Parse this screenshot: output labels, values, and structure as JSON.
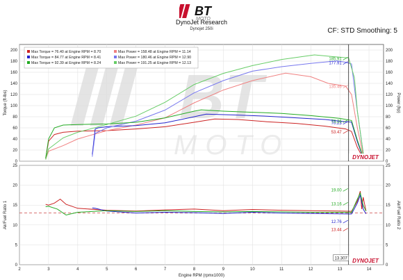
{
  "header": {
    "brand": "BT MOTO",
    "title": "DynoJet Research",
    "subtitle": "Dynojet 250i",
    "correction": "CF: STD Smoothing: 5"
  },
  "watermark": {
    "brand": "BT MOTO",
    "badge": "DYNOJET"
  },
  "colors": {
    "red": "#cc2222",
    "blue": "#2222cc",
    "green": "#22aa22",
    "salmon": "#f08080",
    "lightblue": "#7777ee",
    "lightgreen": "#66cc66",
    "target": "#cc4444"
  },
  "chart_data": [
    {
      "type": "line",
      "xlabel": "",
      "ylabel": "Torque (ft-lbs)",
      "ylabel2": "Power (hp)",
      "xlim": [
        2,
        14.5
      ],
      "ylim": [
        0,
        210
      ],
      "xticks": [
        2,
        3,
        4,
        5,
        6,
        7,
        8,
        9,
        10,
        11,
        12,
        13,
        14
      ],
      "yticks": [
        0,
        20,
        40,
        60,
        80,
        100,
        120,
        140,
        160,
        180,
        200
      ],
      "grid": true,
      "legend_position": "top-left",
      "legend": [
        "Max Torque = 76.40 at Engine RPM = 8.70",
        "Max Power = 158.48 at Engine RPM = 11.14",
        "Max Torque = 84.77 at Engine RPM = 8.41",
        "Max Power = 180.46 at Engine RPM = 12.90",
        "Max Torque = 92.39 at Engine RPM = 8.24",
        "Max Power = 191.25 at Engine RPM = 12.13"
      ],
      "series": [
        {
          "color": "#cc2222",
          "kind": "torque",
          "x": [
            2.9,
            3.0,
            3.2,
            3.5,
            4.0,
            5.0,
            6.0,
            7.0,
            8.0,
            8.7,
            9.5,
            10.5,
            11.5,
            12.5,
            13.2,
            13.4,
            13.6,
            13.8,
            13.9
          ],
          "y": [
            5,
            36,
            48,
            52,
            54,
            55,
            58,
            62,
            70,
            76,
            75,
            71,
            68,
            63,
            58,
            53.5,
            25,
            5,
            2
          ]
        },
        {
          "color": "#f08080",
          "kind": "power",
          "x": [
            2.9,
            3.0,
            3.5,
            4.0,
            5.0,
            6.0,
            7.0,
            8.0,
            9.0,
            10.0,
            11.14,
            12.0,
            12.6,
            13.2,
            13.4,
            13.6,
            13.8,
            13.9
          ],
          "y": [
            3,
            18,
            28,
            40,
            55,
            65,
            78,
            105,
            128,
            145,
            158.5,
            152,
            140,
            135,
            120,
            60,
            10,
            2
          ]
        },
        {
          "color": "#2222cc",
          "kind": "torque",
          "x": [
            4.5,
            4.6,
            4.7,
            5.0,
            6.0,
            7.0,
            8.0,
            8.41,
            9.5,
            10.5,
            11.5,
            12.5,
            13.0,
            13.4,
            13.6,
            13.8,
            13.9
          ],
          "y": [
            12,
            58,
            60,
            62,
            64,
            69,
            80,
            84.8,
            83,
            81,
            78,
            75,
            72,
            70.2,
            35,
            6,
            2
          ]
        },
        {
          "color": "#7777ee",
          "kind": "power",
          "x": [
            4.5,
            4.6,
            5.0,
            6.0,
            7.0,
            8.0,
            9.0,
            10.0,
            11.0,
            12.0,
            12.9,
            13.2,
            13.4,
            13.6,
            13.8,
            13.9
          ],
          "y": [
            8,
            50,
            60,
            72,
            92,
            123,
            145,
            162,
            170,
            176,
            180.5,
            178,
            175,
            90,
            15,
            3
          ]
        },
        {
          "color": "#22aa22",
          "kind": "torque",
          "x": [
            2.9,
            3.0,
            3.2,
            3.5,
            4.0,
            5.0,
            6.0,
            7.0,
            8.0,
            8.24,
            9.0,
            10.0,
            11.0,
            12.0,
            13.0,
            13.4,
            13.6,
            13.8,
            13.9
          ],
          "y": [
            5,
            40,
            60,
            65,
            66,
            67,
            70,
            78,
            90,
            92.4,
            90,
            88,
            86,
            82,
            77,
            73.3,
            38,
            7,
            2
          ]
        },
        {
          "color": "#66cc66",
          "kind": "power",
          "x": [
            2.9,
            3.0,
            3.5,
            4.0,
            5.0,
            6.0,
            7.0,
            8.0,
            9.0,
            10.0,
            11.0,
            12.13,
            12.8,
            13.3,
            13.5,
            13.6,
            13.8,
            13.9
          ],
          "y": [
            3,
            22,
            42,
            52,
            66,
            81,
            106,
            138,
            158,
            172,
            183,
            191.3,
            188,
            185.9,
            150,
            90,
            15,
            3
          ]
        }
      ],
      "annotations": [
        {
          "x": 13.3,
          "y": 185.91,
          "label": "185.91",
          "color": "#22aa22"
        },
        {
          "x": 13.3,
          "y": 177.91,
          "label": "177.91",
          "color": "#2222cc"
        },
        {
          "x": 13.3,
          "y": 135.46,
          "label": "135.46",
          "color": "#f08080"
        },
        {
          "x": 13.3,
          "y": 70.23,
          "label": "70.23",
          "color": "#2222cc"
        },
        {
          "x": 13.3,
          "y": 73.26,
          "label": "73.26",
          "color": "#22aa22"
        },
        {
          "x": 13.3,
          "y": 53.47,
          "label": "53.47",
          "color": "#cc2222"
        }
      ]
    },
    {
      "type": "line",
      "xlabel": "Engine RPM (rpmx1000)",
      "ylabel": "Air/Fuel Ratio 1",
      "ylabel2": "Air/Fuel Ratio 2",
      "xlim": [
        2,
        14.5
      ],
      "ylim": [
        0,
        25
      ],
      "xticks": [
        2,
        3,
        4,
        5,
        6,
        7,
        8,
        9,
        10,
        11,
        12,
        13,
        14
      ],
      "yticks": [
        0,
        5,
        10,
        15,
        20,
        25
      ],
      "grid": true,
      "reference_line": 13.0,
      "series": [
        {
          "color": "#cc2222",
          "x": [
            2.9,
            3.0,
            3.2,
            3.4,
            3.6,
            4.0,
            5.0,
            6.0,
            7.0,
            8.0,
            9.0,
            10.0,
            11.0,
            12.0,
            13.0,
            13.4,
            13.6,
            13.7,
            13.75,
            13.8,
            13.9
          ],
          "y": [
            15.2,
            15.0,
            15.5,
            16.5,
            15.2,
            14.2,
            13.7,
            13.5,
            13.8,
            14.0,
            13.6,
            13.9,
            13.7,
            13.6,
            13.5,
            13.44,
            16.0,
            18.5,
            14.0,
            17.0,
            13.5
          ]
        },
        {
          "color": "#2222cc",
          "x": [
            4.5,
            4.6,
            5.0,
            6.0,
            7.0,
            8.0,
            9.0,
            10.0,
            11.0,
            12.0,
            13.0,
            13.4,
            13.6,
            13.7,
            13.8,
            13.9
          ],
          "y": [
            14.3,
            14.2,
            13.5,
            13.0,
            13.2,
            13.1,
            12.9,
            13.2,
            13.0,
            12.9,
            12.8,
            12.76,
            15.5,
            17.5,
            14.0,
            12.8
          ]
        },
        {
          "color": "#22aa22",
          "x": [
            2.9,
            3.0,
            3.3,
            3.6,
            4.0,
            5.0,
            6.0,
            7.0,
            8.0,
            9.0,
            10.0,
            11.0,
            12.0,
            13.0,
            13.4,
            13.6,
            13.7,
            13.8,
            13.9
          ],
          "y": [
            14.6,
            14.7,
            14.0,
            12.5,
            13.2,
            13.6,
            13.4,
            13.6,
            13.4,
            13.3,
            13.4,
            13.3,
            13.2,
            13.2,
            13.16,
            16.5,
            18.0,
            15.0,
            13.5
          ]
        }
      ],
      "annotations": [
        {
          "x": 13.3,
          "y": 19.0,
          "label": "19.00",
          "color": "#22aa22"
        },
        {
          "x": 13.3,
          "y": 15.5,
          "label": "13.16",
          "color": "#22aa22"
        },
        {
          "x": 13.3,
          "y": 11.0,
          "label": "12.76",
          "color": "#2222cc"
        },
        {
          "x": 13.3,
          "y": 9.0,
          "label": "13.44",
          "color": "#cc2222"
        }
      ],
      "cursor": {
        "x": 13.3,
        "label": "13.307"
      }
    }
  ]
}
